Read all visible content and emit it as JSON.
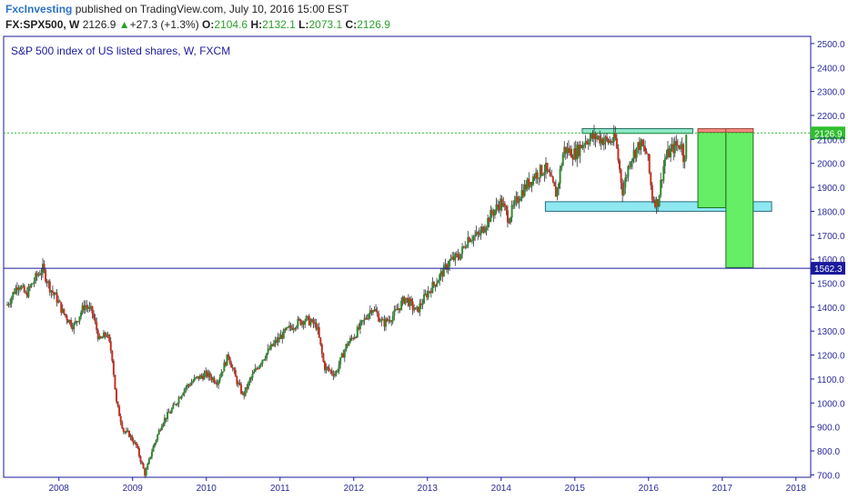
{
  "header": {
    "author": "FxcInvesting",
    "published_text": " published on TradingView.com, July 10, 2016 15:00 EST",
    "symbol": "FX:SPX500, W",
    "last": "2126.9",
    "change_arrow": "▲",
    "change": "+27.3 (+1.3%)",
    "open_label": "O:",
    "open": "2104.6",
    "high_label": "H:",
    "high": "2132.1",
    "low_label": "L:",
    "low": "2073.1",
    "close_label": "C:",
    "close": "2126.9"
  },
  "colors": {
    "frame": "#1a1a9c",
    "axis_text": "#2a2a9c",
    "bull": "#2e8b2e",
    "bear": "#c8301e",
    "wick": "#333333",
    "support_fill": "#8ee8f2",
    "resistance_fill": "#8ee8c8",
    "target_fill": "#66ee66",
    "target_top": "#f08a80",
    "current_price_line": "#2fbf2f",
    "level_line": "#1a1a9c"
  },
  "chart_data": {
    "type": "candlestick",
    "title": "S&P 500 index of US listed shares, W, FXCM",
    "x_ticks": [
      "2008",
      "2009",
      "2010",
      "2011",
      "2012",
      "2013",
      "2014",
      "2015",
      "2016",
      "2017",
      "2018"
    ],
    "y_ticks": [
      "2500.0",
      "2400.0",
      "2300.0",
      "2200.0",
      "2100.0",
      "2000.0",
      "1900.0",
      "1800.0",
      "1700.0",
      "1600.0",
      "1500.0",
      "1400.0",
      "1300.0",
      "1200.0",
      "1100.0",
      "1000.0",
      "900.0",
      "800.0",
      "700.0"
    ],
    "ylim": [
      690,
      2530
    ],
    "xlim": [
      2007.25,
      2018.2
    ],
    "current_price_label": "2126.9",
    "current_price": 2126.9,
    "level_label": "1562.3",
    "level_price": 1562.3,
    "path": [
      [
        2007.3,
        1410
      ],
      [
        2007.45,
        1500
      ],
      [
        2007.55,
        1450
      ],
      [
        2007.7,
        1530
      ],
      [
        2007.78,
        1560
      ],
      [
        2007.88,
        1480
      ],
      [
        2007.98,
        1430
      ],
      [
        2008.05,
        1380
      ],
      [
        2008.2,
        1320
      ],
      [
        2008.35,
        1410
      ],
      [
        2008.45,
        1380
      ],
      [
        2008.55,
        1260
      ],
      [
        2008.65,
        1290
      ],
      [
        2008.72,
        1200
      ],
      [
        2008.78,
        1000
      ],
      [
        2008.88,
        880
      ],
      [
        2008.95,
        870
      ],
      [
        2009.05,
        820
      ],
      [
        2009.17,
        700
      ],
      [
        2009.25,
        790
      ],
      [
        2009.4,
        920
      ],
      [
        2009.55,
        980
      ],
      [
        2009.7,
        1060
      ],
      [
        2009.85,
        1100
      ],
      [
        2010.0,
        1120
      ],
      [
        2010.15,
        1090
      ],
      [
        2010.3,
        1200
      ],
      [
        2010.4,
        1100
      ],
      [
        2010.5,
        1030
      ],
      [
        2010.6,
        1100
      ],
      [
        2010.75,
        1180
      ],
      [
        2010.9,
        1240
      ],
      [
        2011.05,
        1290
      ],
      [
        2011.2,
        1330
      ],
      [
        2011.35,
        1350
      ],
      [
        2011.5,
        1320
      ],
      [
        2011.6,
        1150
      ],
      [
        2011.75,
        1120
      ],
      [
        2011.9,
        1240
      ],
      [
        2012.05,
        1300
      ],
      [
        2012.25,
        1400
      ],
      [
        2012.4,
        1330
      ],
      [
        2012.55,
        1370
      ],
      [
        2012.7,
        1440
      ],
      [
        2012.85,
        1380
      ],
      [
        2013.0,
        1460
      ],
      [
        2013.15,
        1520
      ],
      [
        2013.3,
        1590
      ],
      [
        2013.45,
        1620
      ],
      [
        2013.55,
        1690
      ],
      [
        2013.7,
        1700
      ],
      [
        2013.85,
        1780
      ],
      [
        2014.0,
        1840
      ],
      [
        2014.1,
        1770
      ],
      [
        2014.25,
        1870
      ],
      [
        2014.45,
        1950
      ],
      [
        2014.6,
        1980
      ],
      [
        2014.75,
        1870
      ],
      [
        2014.85,
        2060
      ],
      [
        2015.0,
        2040
      ],
      [
        2015.15,
        2100
      ],
      [
        2015.3,
        2110
      ],
      [
        2015.45,
        2090
      ],
      [
        2015.55,
        2100
      ],
      [
        2015.65,
        1880
      ],
      [
        2015.75,
        2020
      ],
      [
        2015.88,
        2080
      ],
      [
        2015.98,
        2040
      ],
      [
        2016.05,
        1860
      ],
      [
        2016.12,
        1830
      ],
      [
        2016.22,
        2020
      ],
      [
        2016.35,
        2070
      ],
      [
        2016.45,
        2080
      ],
      [
        2016.48,
        2010
      ],
      [
        2016.52,
        2126.9
      ]
    ],
    "zones": [
      {
        "kind": "resistance",
        "x0": 2015.1,
        "x1": 2016.6,
        "y0": 2125,
        "y1": 2145
      },
      {
        "kind": "support",
        "x0": 2014.6,
        "x1": 2017.67,
        "y0": 1800,
        "y1": 1840
      },
      {
        "kind": "target-1",
        "x0": 2016.67,
        "x1": 2017.05,
        "y0": 1815,
        "y1": 2145
      },
      {
        "kind": "target-2",
        "x0": 2017.05,
        "x1": 2017.42,
        "y0": 1565,
        "y1": 2145
      }
    ]
  }
}
